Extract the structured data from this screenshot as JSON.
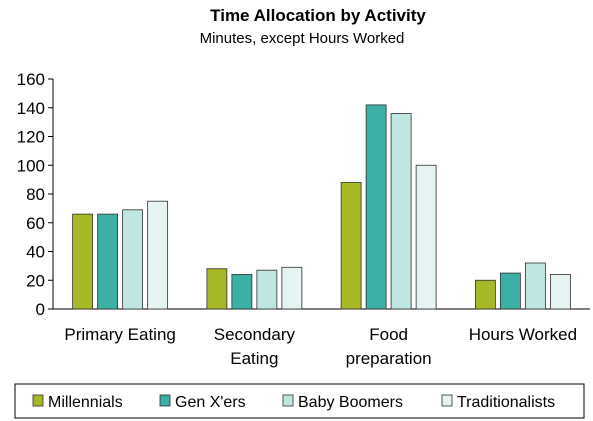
{
  "chart_data": {
    "type": "bar",
    "title": "Time Allocation by Activity",
    "subtitle": "Minutes, except Hours Worked",
    "xlabel": "",
    "ylabel": "",
    "categories": [
      [
        "Primary Eating"
      ],
      [
        "Secondary",
        "Eating"
      ],
      [
        "Food",
        "preparation"
      ],
      [
        "Hours Worked"
      ]
    ],
    "series": [
      {
        "name": "Millennials",
        "color": "#a7b827",
        "values": [
          66,
          28,
          88,
          20
        ]
      },
      {
        "name": "Gen X'ers",
        "color": "#3cb0a4",
        "values": [
          66,
          24,
          142,
          25
        ]
      },
      {
        "name": "Baby Boomers",
        "color": "#bfe6e1",
        "values": [
          69,
          27,
          136,
          32
        ]
      },
      {
        "name": "Traditionalists",
        "color": "#e5f4f2",
        "values": [
          75,
          29,
          100,
          24
        ]
      }
    ],
    "ylim": [
      0,
      160
    ],
    "yticks": [
      0,
      20,
      40,
      60,
      80,
      100,
      120,
      140,
      160
    ],
    "grid": false,
    "legend": "bottom"
  }
}
